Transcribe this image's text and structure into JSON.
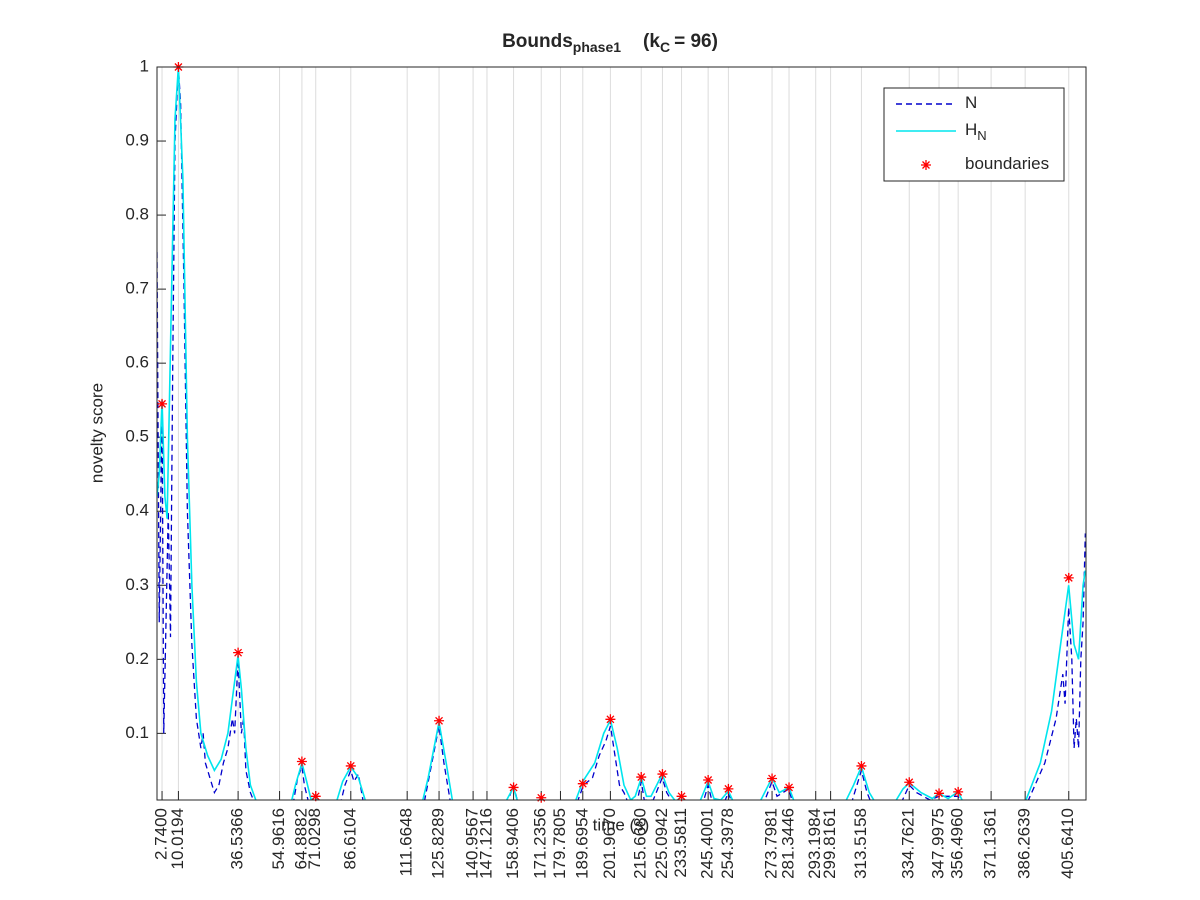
{
  "chart_data": {
    "type": "line",
    "title": [
      {
        "text": "Bounds"
      },
      {
        "text": "phase1",
        "sub": true
      },
      {
        "text": "(k"
      },
      {
        "text": "C",
        "sub": true
      },
      {
        "text": "= 96)"
      }
    ],
    "xlabel": "time (s)",
    "ylabel": "novelty score",
    "xlim": [
      0.5,
      413.3
    ],
    "ylim": [
      0.01,
      1
    ],
    "yticks": [
      0.1,
      0.2,
      0.3,
      0.4,
      0.5,
      0.6,
      0.7,
      0.8,
      0.9,
      1
    ],
    "xticks": [
      {
        "value": 2.74,
        "label": "2.7400"
      },
      {
        "value": 10.0194,
        "label": "10.0194"
      },
      {
        "value": 36.5366,
        "label": "36.5366"
      },
      {
        "value": 54.9616,
        "label": "54.9616"
      },
      {
        "value": 64.8882,
        "label": "64.8882"
      },
      {
        "value": 71.0298,
        "label": "71.0298"
      },
      {
        "value": 86.6104,
        "label": "86.6104"
      },
      {
        "value": 111.6648,
        "label": "111.6648"
      },
      {
        "value": 125.8289,
        "label": "125.8289"
      },
      {
        "value": 140.9567,
        "label": "140.9567"
      },
      {
        "value": 147.1216,
        "label": "147.1216"
      },
      {
        "value": 158.9406,
        "label": "158.9406"
      },
      {
        "value": 171.2356,
        "label": "171.2356"
      },
      {
        "value": 179.7805,
        "label": "179.7805"
      },
      {
        "value": 189.6954,
        "label": "189.6954"
      },
      {
        "value": 201.967,
        "label": "201.9670"
      },
      {
        "value": 215.668,
        "label": "215.6680"
      },
      {
        "value": 225.0942,
        "label": "225.0942"
      },
      {
        "value": 233.5811,
        "label": "233.5811"
      },
      {
        "value": 245.4001,
        "label": "245.4001"
      },
      {
        "value": 254.3978,
        "label": "254.3978"
      },
      {
        "value": 273.7981,
        "label": "273.7981"
      },
      {
        "value": 281.3446,
        "label": "281.3446"
      },
      {
        "value": 293.1984,
        "label": "293.1984"
      },
      {
        "value": 299.8161,
        "label": "299.8161"
      },
      {
        "value": 313.5158,
        "label": "313.5158"
      },
      {
        "value": 334.7621,
        "label": "334.7621"
      },
      {
        "value": 347.9975,
        "label": "347.9975"
      },
      {
        "value": 356.496,
        "label": "356.4960"
      },
      {
        "value": 371.1361,
        "label": "371.1361"
      },
      {
        "value": 386.2639,
        "label": "386.2639"
      },
      {
        "value": 405.641,
        "label": "405.6410"
      }
    ],
    "grid": "x",
    "legend": "northeast",
    "series": [
      {
        "name": "N",
        "color": "#0000cc",
        "style": "dashed",
        "x": [
          0.5,
          1.5,
          2.74,
          3.5,
          4.5,
          5.5,
          6.5,
          7.5,
          8.5,
          10,
          11,
          12.5,
          14,
          16,
          18,
          20,
          21,
          22,
          24,
          26,
          28,
          30,
          32,
          34,
          35,
          36.5,
          38,
          39,
          40,
          42,
          44,
          61,
          63,
          64.9,
          66,
          68,
          71,
          72,
          82,
          84,
          86.6,
          88,
          90,
          92,
          94,
          119,
          122,
          125.8,
          128,
          131,
          156,
          158.9,
          161,
          187,
          190,
          194,
          197,
          200,
          202,
          204,
          206,
          208,
          210,
          214,
          215.7,
          217,
          221,
          225,
          227,
          230,
          243,
          245.4,
          247,
          253,
          254.4,
          256,
          270,
          273.8,
          276,
          281.3,
          283,
          309,
          313.5,
          316,
          318,
          331,
          334.8,
          338,
          344,
          348,
          356.5,
          358,
          387,
          395,
          400,
          403,
          404,
          405.6,
          407,
          408,
          409,
          410,
          411,
          412,
          413
        ],
        "values": [
          0.75,
          0.25,
          0.55,
          0.1,
          0.25,
          0.4,
          0.23,
          0.6,
          0.9,
          1.0,
          0.95,
          0.7,
          0.4,
          0.22,
          0.12,
          0.08,
          0.1,
          0.06,
          0.04,
          0.02,
          0.03,
          0.06,
          0.08,
          0.12,
          0.1,
          0.2,
          0.1,
          0.12,
          0.05,
          0.02,
          0.005,
          0.005,
          0.04,
          0.055,
          0.03,
          0.005,
          0.01,
          0.005,
          0.005,
          0.03,
          0.05,
          0.035,
          0.045,
          0.01,
          0.003,
          0.003,
          0.05,
          0.11,
          0.06,
          0.005,
          0.005,
          0.03,
          0.005,
          0.005,
          0.03,
          0.04,
          0.07,
          0.09,
          0.11,
          0.07,
          0.03,
          0.02,
          0.005,
          0.01,
          0.035,
          0.01,
          0.01,
          0.04,
          0.02,
          0.005,
          0.005,
          0.03,
          0.01,
          0.01,
          0.02,
          0.005,
          0.005,
          0.035,
          0.015,
          0.025,
          0.005,
          0.005,
          0.05,
          0.02,
          0.005,
          0.005,
          0.03,
          0.02,
          0.01,
          0.015,
          0.015,
          0.005,
          0.005,
          0.06,
          0.12,
          0.18,
          0.14,
          0.27,
          0.2,
          0.08,
          0.12,
          0.08,
          0.2,
          0.25,
          0.37
        ]
      },
      {
        "name": "H",
        "name_sub": "N",
        "color": "#00e5ee",
        "style": "solid",
        "x": [
          0.5,
          1.5,
          2.74,
          4,
          5,
          7,
          8.5,
          10,
          12,
          14,
          16,
          18,
          20,
          23,
          26,
          29,
          32,
          35,
          36.5,
          38,
          40,
          42,
          45,
          60,
          62,
          64.9,
          67,
          69,
          71,
          73,
          80,
          83,
          86.6,
          90,
          93,
          95,
          118,
          121,
          125.8,
          129,
          132,
          155,
          158.9,
          161,
          168,
          171.2,
          175,
          186,
          189.7,
          195,
          199,
          202,
          205,
          208,
          211,
          213,
          215.7,
          218,
          220,
          225,
          228,
          231,
          233.6,
          236,
          242,
          245.4,
          248,
          251,
          254.4,
          257,
          268,
          273.8,
          277,
          281.3,
          284,
          306,
          310,
          313.5,
          317,
          320,
          328,
          332,
          334.8,
          340,
          345,
          348,
          352,
          356.5,
          359,
          386,
          393,
          398,
          402,
          405.6,
          408,
          410,
          412,
          413
        ],
        "values": [
          0.42,
          0.45,
          0.55,
          0.42,
          0.39,
          0.7,
          0.93,
          1.0,
          0.85,
          0.5,
          0.3,
          0.17,
          0.1,
          0.07,
          0.05,
          0.065,
          0.1,
          0.17,
          0.205,
          0.16,
          0.08,
          0.03,
          0.005,
          0.005,
          0.03,
          0.06,
          0.035,
          0.01,
          0.015,
          0.005,
          0.005,
          0.035,
          0.055,
          0.04,
          0.01,
          0.002,
          0.002,
          0.04,
          0.115,
          0.06,
          0.005,
          0.005,
          0.027,
          0.005,
          0.005,
          0.012,
          0.005,
          0.005,
          0.035,
          0.06,
          0.1,
          0.118,
          0.08,
          0.03,
          0.01,
          0.015,
          0.04,
          0.015,
          0.015,
          0.045,
          0.02,
          0.008,
          0.015,
          0.005,
          0.01,
          0.035,
          0.012,
          0.01,
          0.022,
          0.005,
          0.005,
          0.04,
          0.02,
          0.027,
          0.005,
          0.005,
          0.03,
          0.055,
          0.02,
          0.005,
          0.005,
          0.025,
          0.033,
          0.02,
          0.012,
          0.019,
          0.012,
          0.021,
          0.005,
          0.005,
          0.06,
          0.13,
          0.22,
          0.3,
          0.22,
          0.2,
          0.3,
          0.32
        ]
      },
      {
        "name": "boundaries",
        "color": "#ff0000",
        "style": "star",
        "x": [
          2.74,
          10.0194,
          36.5366,
          64.8882,
          71.0298,
          86.6104,
          125.8289,
          158.9406,
          171.2356,
          189.6954,
          201.967,
          215.668,
          225.0942,
          233.5811,
          245.4001,
          254.3978,
          273.7981,
          281.3446,
          313.5158,
          334.7621,
          347.9975,
          356.496,
          405.641
        ],
        "values": [
          0.545,
          1.0,
          0.209,
          0.062,
          0.015,
          0.056,
          0.117,
          0.027,
          0.013,
          0.032,
          0.119,
          0.041,
          0.045,
          0.015,
          0.037,
          0.025,
          0.039,
          0.027,
          0.056,
          0.034,
          0.019,
          0.021,
          0.31
        ]
      }
    ]
  }
}
